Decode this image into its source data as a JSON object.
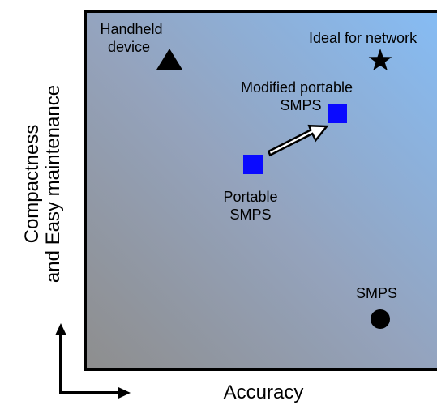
{
  "diagram": {
    "y_axis": {
      "line1": "Compactness",
      "line2": "and Easy maintenance"
    },
    "x_axis": {
      "label": "Accuracy"
    },
    "items": {
      "handheld": {
        "line1": "Handheld",
        "line2": "device",
        "marker": "triangle"
      },
      "ideal": {
        "label": "Ideal for network",
        "marker": "star"
      },
      "modified": {
        "line1": "Modified portable",
        "line2": "SMPS",
        "marker": "square"
      },
      "portable": {
        "line1": "Portable",
        "line2": "SMPS",
        "marker": "square"
      },
      "smps": {
        "label": "SMPS",
        "marker": "circle"
      }
    },
    "colors": {
      "square_marker": "#0a0aff",
      "frame": "#000000",
      "arrow_fill": "#ffffff"
    }
  }
}
